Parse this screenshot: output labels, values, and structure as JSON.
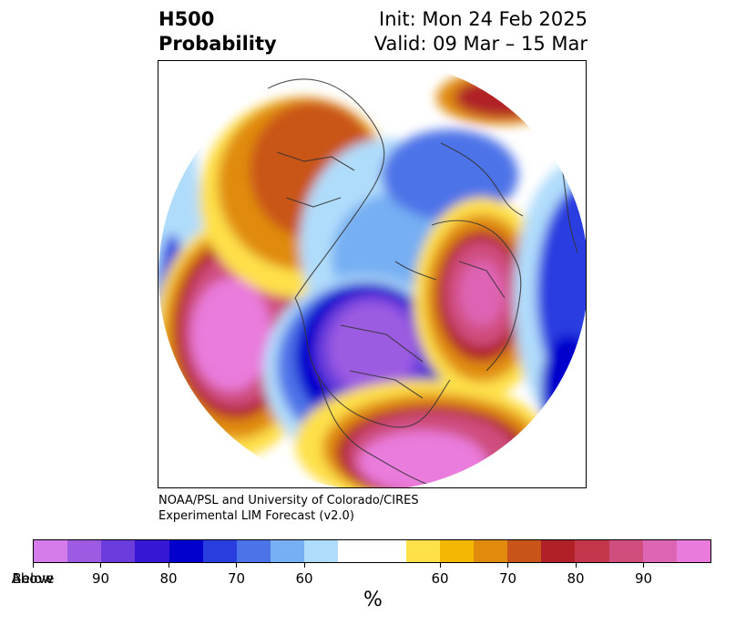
{
  "title": {
    "variable": "H500",
    "metric": "Probability",
    "init": "Init: Mon 24 Feb 2025",
    "valid": "Valid: 09 Mar – 15 Mar"
  },
  "credit": {
    "line1": "NOAA/PSL and University of Colorado/CIRES",
    "line2": "Experimental LIM Forecast (v2.0)"
  },
  "colorbar": {
    "colors": [
      "#d57bea",
      "#9c5be2",
      "#6c3ddc",
      "#3617d3",
      "#0000cd",
      "#2a3ee0",
      "#4d73e8",
      "#76aff3",
      "#b0dcfb",
      "#ffffff",
      "#fee049",
      "#f4b702",
      "#e08b0b",
      "#c95419",
      "#b02127",
      "#c3364b",
      "#cf4e7e",
      "#de64b4",
      "#e97bdc"
    ],
    "tick_labels": [
      "Below",
      "90",
      "80",
      "70",
      "60",
      "60",
      "70",
      "80",
      "90",
      "Above"
    ],
    "unit": "%"
  },
  "map": {
    "projection": "north-polar-stereographic",
    "field": "500-hPa height tercile probability"
  }
}
